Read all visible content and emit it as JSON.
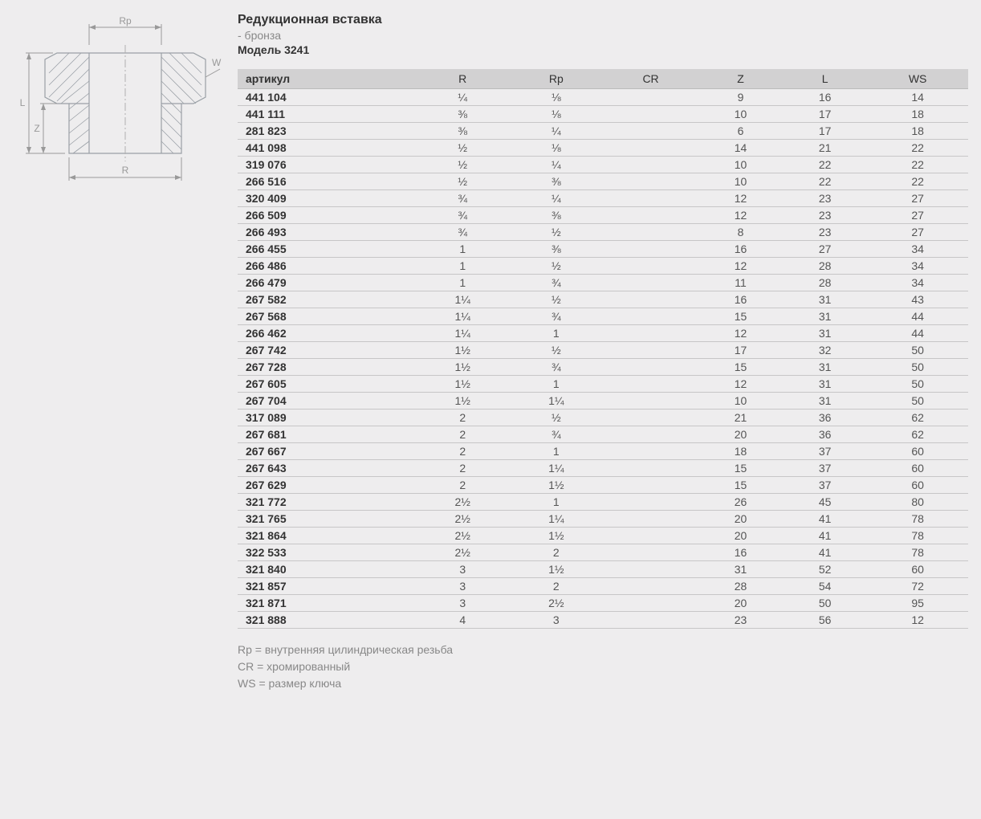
{
  "header": {
    "title": "Редукционная вставка",
    "subtitle": "- бронза",
    "model_label": "Модель 3241"
  },
  "diagram": {
    "labels": {
      "Rp": "Rp",
      "WS": "WS",
      "L": "L",
      "Z": "Z",
      "R": "R"
    },
    "colors": {
      "stroke": "#9aa0a6",
      "hatch": "#9aa0a6",
      "centerline": "#b0b0b0",
      "dimension": "#999999"
    }
  },
  "table": {
    "columns": [
      "артикул",
      "R",
      "Rp",
      "CR",
      "Z",
      "L",
      "WS"
    ],
    "column_widths": [
      "14%",
      "14%",
      "14%",
      "14%",
      "14%",
      "14%",
      "14%"
    ],
    "header_bg": "#d2d1d2",
    "row_border": "#c7c6c7",
    "text_color": "#555555",
    "article_color": "#333333",
    "rows": [
      [
        "441 104",
        "¼",
        "⅛",
        "",
        "9",
        "16",
        "14"
      ],
      [
        "441 111",
        "⅜",
        "⅛",
        "",
        "10",
        "17",
        "18"
      ],
      [
        "281 823",
        "⅜",
        "¼",
        "",
        "6",
        "17",
        "18"
      ],
      [
        "441 098",
        "½",
        "⅛",
        "",
        "14",
        "21",
        "22"
      ],
      [
        "319 076",
        "½",
        "¼",
        "",
        "10",
        "22",
        "22"
      ],
      [
        "266 516",
        "½",
        "⅜",
        "",
        "10",
        "22",
        "22"
      ],
      [
        "320 409",
        "¾",
        "¼",
        "",
        "12",
        "23",
        "27"
      ],
      [
        "266 509",
        "¾",
        "⅜",
        "",
        "12",
        "23",
        "27"
      ],
      [
        "266 493",
        "¾",
        "½",
        "",
        "8",
        "23",
        "27"
      ],
      [
        "266 455",
        "1",
        "⅜",
        "",
        "16",
        "27",
        "34"
      ],
      [
        "266 486",
        "1",
        "½",
        "",
        "12",
        "28",
        "34"
      ],
      [
        "266 479",
        "1",
        "¾",
        "",
        "11",
        "28",
        "34"
      ],
      [
        "267 582",
        "1¼",
        "½",
        "",
        "16",
        "31",
        "43"
      ],
      [
        "267 568",
        "1¼",
        "¾",
        "",
        "15",
        "31",
        "44"
      ],
      [
        "266 462",
        "1¼",
        "1",
        "",
        "12",
        "31",
        "44"
      ],
      [
        "267 742",
        "1½",
        "½",
        "",
        "17",
        "32",
        "50"
      ],
      [
        "267 728",
        "1½",
        "¾",
        "",
        "15",
        "31",
        "50"
      ],
      [
        "267 605",
        "1½",
        "1",
        "",
        "12",
        "31",
        "50"
      ],
      [
        "267 704",
        "1½",
        "1¼",
        "",
        "10",
        "31",
        "50"
      ],
      [
        "317 089",
        "2",
        "½",
        "",
        "21",
        "36",
        "62"
      ],
      [
        "267 681",
        "2",
        "¾",
        "",
        "20",
        "36",
        "62"
      ],
      [
        "267 667",
        "2",
        "1",
        "",
        "18",
        "37",
        "60"
      ],
      [
        "267 643",
        "2",
        "1¼",
        "",
        "15",
        "37",
        "60"
      ],
      [
        "267 629",
        "2",
        "1½",
        "",
        "15",
        "37",
        "60"
      ],
      [
        "321 772",
        "2½",
        "1",
        "",
        "26",
        "45",
        "80"
      ],
      [
        "321 765",
        "2½",
        "1¼",
        "",
        "20",
        "41",
        "78"
      ],
      [
        "321 864",
        "2½",
        "1½",
        "",
        "20",
        "41",
        "78"
      ],
      [
        "322 533",
        "2½",
        "2",
        "",
        "16",
        "41",
        "78"
      ],
      [
        "321 840",
        "3",
        "1½",
        "",
        "31",
        "52",
        "60"
      ],
      [
        "321 857",
        "3",
        "2",
        "",
        "28",
        "54",
        "72"
      ],
      [
        "321 871",
        "3",
        "2½",
        "",
        "20",
        "50",
        "95"
      ],
      [
        "321 888",
        "4",
        "3",
        "",
        "23",
        "56",
        "12"
      ]
    ]
  },
  "legend": {
    "lines": [
      "Rp = внутренняя цилиндрическая резьба",
      "CR = хромированный",
      "WS = размер ключа"
    ]
  }
}
